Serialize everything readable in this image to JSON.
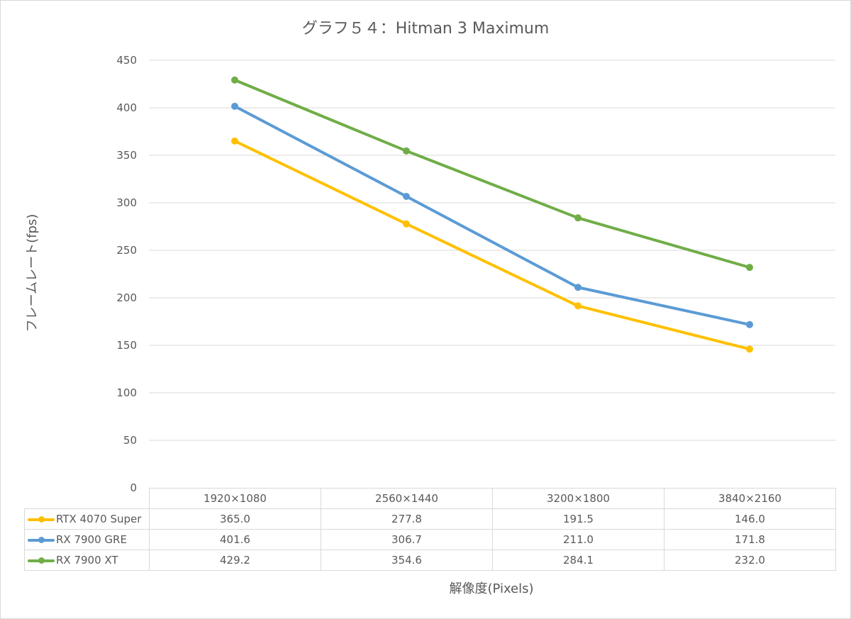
{
  "chart_data": {
    "type": "line",
    "title": "グラフ５４：Hitman 3 Maximum",
    "xlabel": "解像度(Pixels)",
    "ylabel": "フレームレート(fps)",
    "ylim": [
      0,
      450
    ],
    "ytick_step": 50,
    "yticks": [
      "0",
      "50",
      "100",
      "150",
      "200",
      "250",
      "300",
      "350",
      "400",
      "450"
    ],
    "grid": true,
    "legend": "data-table",
    "categories": [
      "1920×1080",
      "2560×1440",
      "3200×1800",
      "3840×2160"
    ],
    "series": [
      {
        "name": "RTX 4070 Super",
        "color": "#FFC000",
        "values": [
          365.0,
          277.8,
          191.5,
          146.0
        ],
        "labels": [
          "365.0",
          "277.8",
          "191.5",
          "146.0"
        ]
      },
      {
        "name": "RX 7900 GRE",
        "color": "#5B9BD5",
        "values": [
          401.6,
          306.7,
          211.0,
          171.8
        ],
        "labels": [
          "401.6",
          "306.7",
          "211.0",
          "171.8"
        ]
      },
      {
        "name": "RX 7900 XT",
        "color": "#70AD47",
        "values": [
          429.2,
          354.6,
          284.1,
          232.0
        ],
        "labels": [
          "429.2",
          "354.6",
          "284.1",
          "232.0"
        ]
      }
    ]
  }
}
